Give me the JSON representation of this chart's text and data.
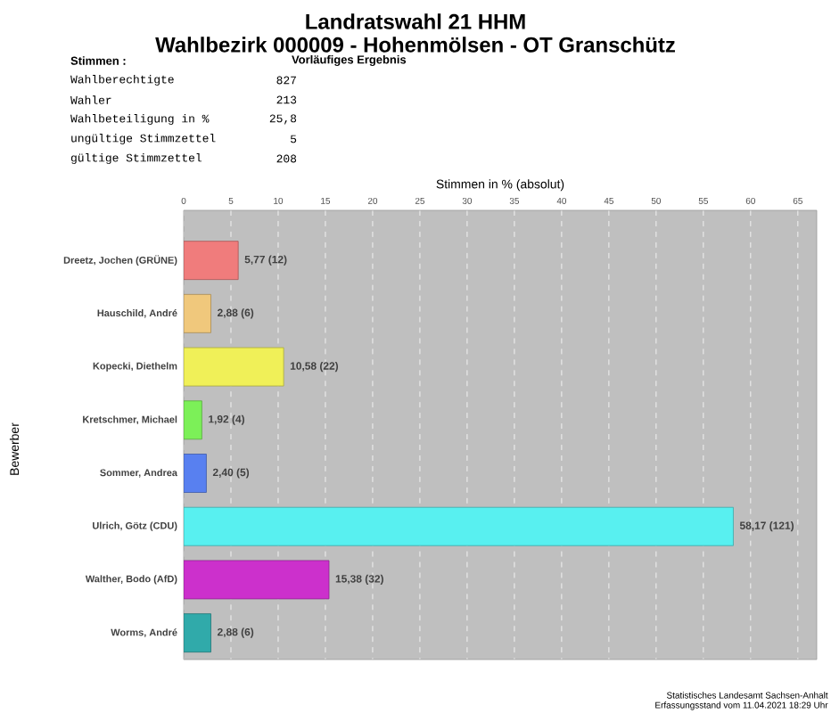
{
  "chart_data": {
    "type": "bar",
    "orientation": "horizontal",
    "title": "Landratswahl 21 HHM",
    "subtitle": "Wahlbezirk 000009 - Hohenmölsen - OT Granschütz",
    "xlabel": "Stimmen in % (absolut)",
    "ylabel": "Bewerber",
    "categories": [
      "Dreetz, Jochen (GRÜNE)",
      "Hauschild, André",
      "Kopecki, Diethelm",
      "Kretschmer, Michael",
      "Sommer, Andrea",
      "Ulrich, Götz (CDU)",
      "Walther, Bodo (AfD)",
      "Worms, André"
    ],
    "values": [
      5.77,
      2.88,
      10.58,
      1.92,
      2.4,
      58.17,
      15.38,
      2.88
    ],
    "value_labels": [
      "5,77 (12)",
      "2,88 (6)",
      "10,58 (22)",
      "1,92 (4)",
      "2,40 (5)",
      "58,17 (121)",
      "15,38 (32)",
      "2,88 (6)"
    ],
    "colors": [
      "#f07c7c",
      "#f0c87c",
      "#f0f058",
      "#7cf058",
      "#5880f0",
      "#58f0f0",
      "#cc30cc",
      "#30aaaa"
    ],
    "xlim": [
      0,
      67
    ],
    "xticks": [
      0,
      5,
      10,
      15,
      20,
      25,
      30,
      35,
      40,
      45,
      50,
      55,
      60,
      65
    ],
    "grid": "x",
    "annotations": [
      "Stimmen :",
      "Vorläufiges Ergebnis",
      "Wahlberechtigte",
      "827",
      "Wahler",
      "213",
      "Wahlbeteiligung in %",
      "25,8",
      "ungültige Stimmzettel",
      "5",
      "gültige Stimmzettel",
      "208",
      "Statistisches Landesamt Sachsen-Anhalt",
      "Erfassungsstand vom 11.04.2021 18:29 Uhr"
    ]
  }
}
